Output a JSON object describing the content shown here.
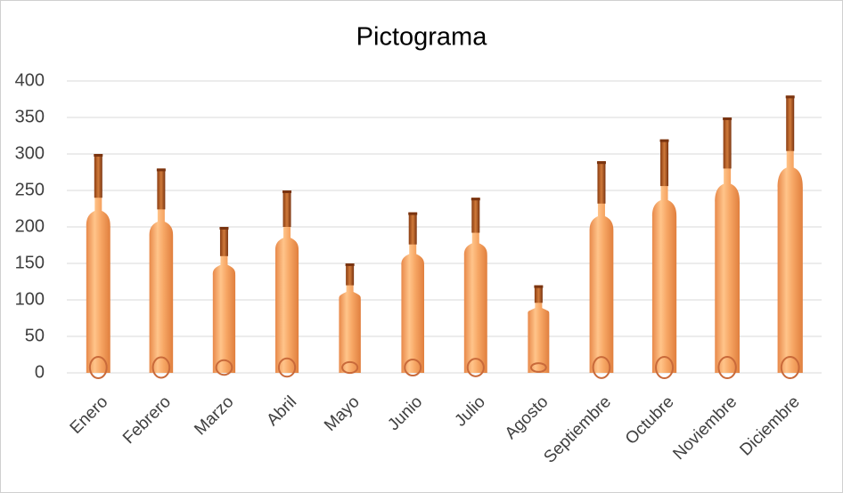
{
  "chart_data": {
    "type": "pictogram",
    "title": "Pictograma",
    "categories": [
      "Enero",
      "Febrero",
      "Marzo",
      "Abril",
      "Mayo",
      "Junio",
      "Julio",
      "Agosto",
      "Septiembre",
      "Octubre",
      "Noviembre",
      "Diciembre"
    ],
    "values": [
      300,
      280,
      200,
      250,
      150,
      220,
      240,
      120,
      290,
      320,
      350,
      380
    ],
    "color": "#f4a460",
    "ylim": [
      0,
      400
    ],
    "yticks": [
      0,
      50,
      100,
      150,
      200,
      250,
      300,
      350,
      400
    ],
    "grid": true
  }
}
